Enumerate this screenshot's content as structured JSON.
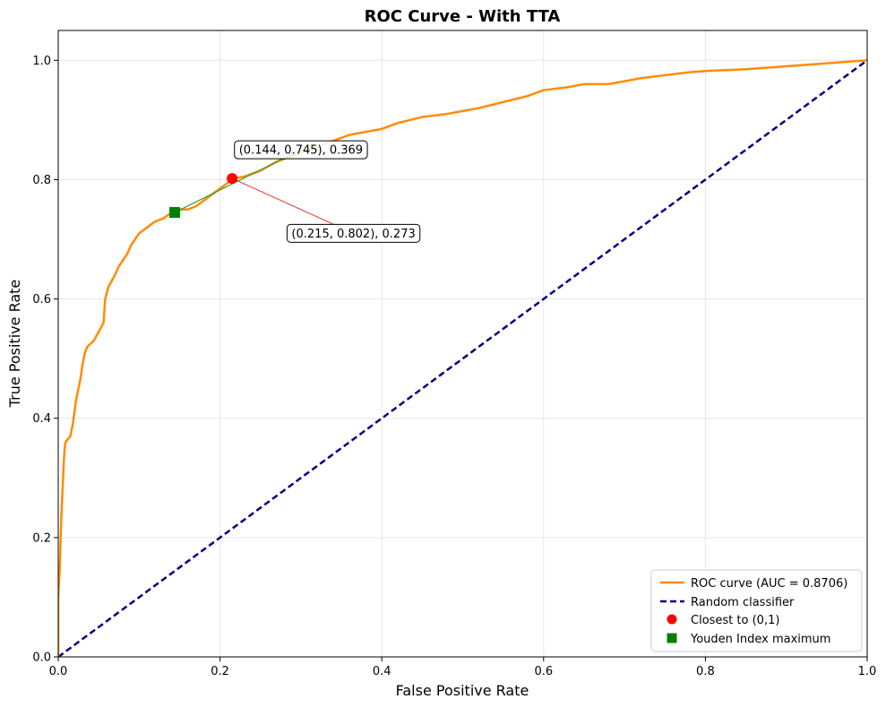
{
  "chart_data": {
    "type": "line",
    "title": "ROC Curve - With TTA",
    "xlabel": "False Positive Rate",
    "ylabel": "True Positive Rate",
    "xlim": [
      0,
      1
    ],
    "ylim": [
      0,
      1.05
    ],
    "xticks": [
      0.0,
      0.2,
      0.4,
      0.6,
      0.8,
      1.0
    ],
    "yticks": [
      0.0,
      0.2,
      0.4,
      0.6,
      0.8,
      1.0
    ],
    "xtick_labels": [
      "0.0",
      "0.2",
      "0.4",
      "0.6",
      "0.8",
      "1.0"
    ],
    "ytick_labels": [
      "0.0",
      "0.2",
      "0.4",
      "0.6",
      "0.8",
      "1.0"
    ],
    "grid": true,
    "legend_position": "bottom-right",
    "colors": {
      "roc": "#ff8c00",
      "random": "#000080",
      "closest": "#ff0000",
      "youden": "#008000",
      "closest_line": "#e8554e",
      "youden_line": "#3a9a3a",
      "grid": "#e6e6e6"
    },
    "series": [
      {
        "name": "ROC curve (AUC = 0.8706)",
        "style": "solid",
        "x": [
          0.0,
          0.0,
          0.002,
          0.003,
          0.004,
          0.005,
          0.006,
          0.007,
          0.008,
          0.009,
          0.012,
          0.015,
          0.018,
          0.02,
          0.022,
          0.025,
          0.028,
          0.03,
          0.033,
          0.036,
          0.04,
          0.044,
          0.048,
          0.052,
          0.056,
          0.058,
          0.06,
          0.062,
          0.066,
          0.07,
          0.075,
          0.08,
          0.085,
          0.09,
          0.095,
          0.1,
          0.105,
          0.11,
          0.12,
          0.13,
          0.135,
          0.14,
          0.144,
          0.15,
          0.16,
          0.17,
          0.18,
          0.19,
          0.2,
          0.21,
          0.215,
          0.23,
          0.25,
          0.27,
          0.3,
          0.33,
          0.36,
          0.38,
          0.4,
          0.42,
          0.45,
          0.48,
          0.5,
          0.52,
          0.55,
          0.58,
          0.6,
          0.63,
          0.65,
          0.68,
          0.7,
          0.72,
          0.75,
          0.78,
          0.8,
          0.85,
          0.9,
          0.95,
          1.0
        ],
        "y": [
          0.0,
          0.1,
          0.15,
          0.2,
          0.24,
          0.27,
          0.3,
          0.33,
          0.35,
          0.36,
          0.365,
          0.37,
          0.39,
          0.41,
          0.43,
          0.45,
          0.47,
          0.49,
          0.51,
          0.52,
          0.525,
          0.53,
          0.54,
          0.55,
          0.56,
          0.6,
          0.61,
          0.62,
          0.63,
          0.64,
          0.655,
          0.665,
          0.675,
          0.69,
          0.7,
          0.71,
          0.715,
          0.72,
          0.73,
          0.735,
          0.74,
          0.745,
          0.745,
          0.75,
          0.75,
          0.755,
          0.765,
          0.775,
          0.785,
          0.795,
          0.802,
          0.805,
          0.815,
          0.83,
          0.845,
          0.86,
          0.875,
          0.88,
          0.885,
          0.895,
          0.905,
          0.91,
          0.915,
          0.92,
          0.93,
          0.94,
          0.95,
          0.955,
          0.96,
          0.96,
          0.965,
          0.97,
          0.975,
          0.98,
          0.982,
          0.985,
          0.99,
          0.995,
          1.0
        ]
      },
      {
        "name": "Random classifier",
        "style": "dashed",
        "x": [
          0.0,
          1.0
        ],
        "y": [
          0.0,
          1.0
        ]
      }
    ],
    "points": [
      {
        "name": "Closest to (0,1)",
        "marker": "circle",
        "x": 0.215,
        "y": 0.802,
        "annotation": "(0.215, 0.802), 0.273",
        "annotation_anchor": [
          0.365,
          0.71
        ]
      },
      {
        "name": "Youden Index maximum",
        "marker": "square",
        "x": 0.144,
        "y": 0.745,
        "annotation": "(0.144, 0.745), 0.369",
        "annotation_anchor": [
          0.3,
          0.85
        ]
      }
    ]
  }
}
